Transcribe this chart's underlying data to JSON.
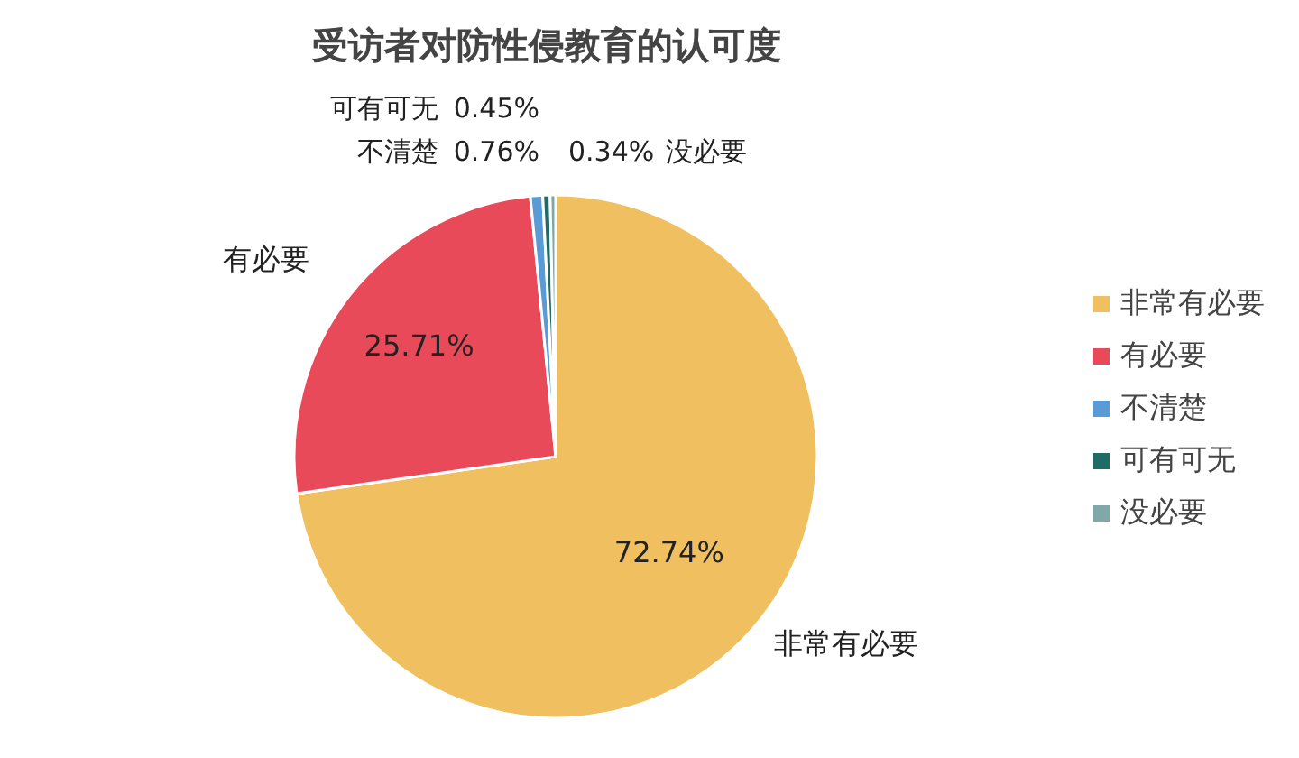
{
  "chart_data": {
    "type": "pie",
    "title": "受访者对防性侵教育的认可度",
    "categories": [
      "非常有必要",
      "有必要",
      "不清楚",
      "可有可无",
      "没必要"
    ],
    "values": [
      72.74,
      25.71,
      0.76,
      0.45,
      0.34
    ],
    "value_labels": [
      "72.74%",
      "25.71%",
      "0.76%",
      "0.45%",
      "0.34%"
    ],
    "colors": [
      "#f0c060",
      "#e84a5a",
      "#5b9bd5",
      "#1f6b66",
      "#7fa8a8"
    ],
    "legend": "right"
  }
}
